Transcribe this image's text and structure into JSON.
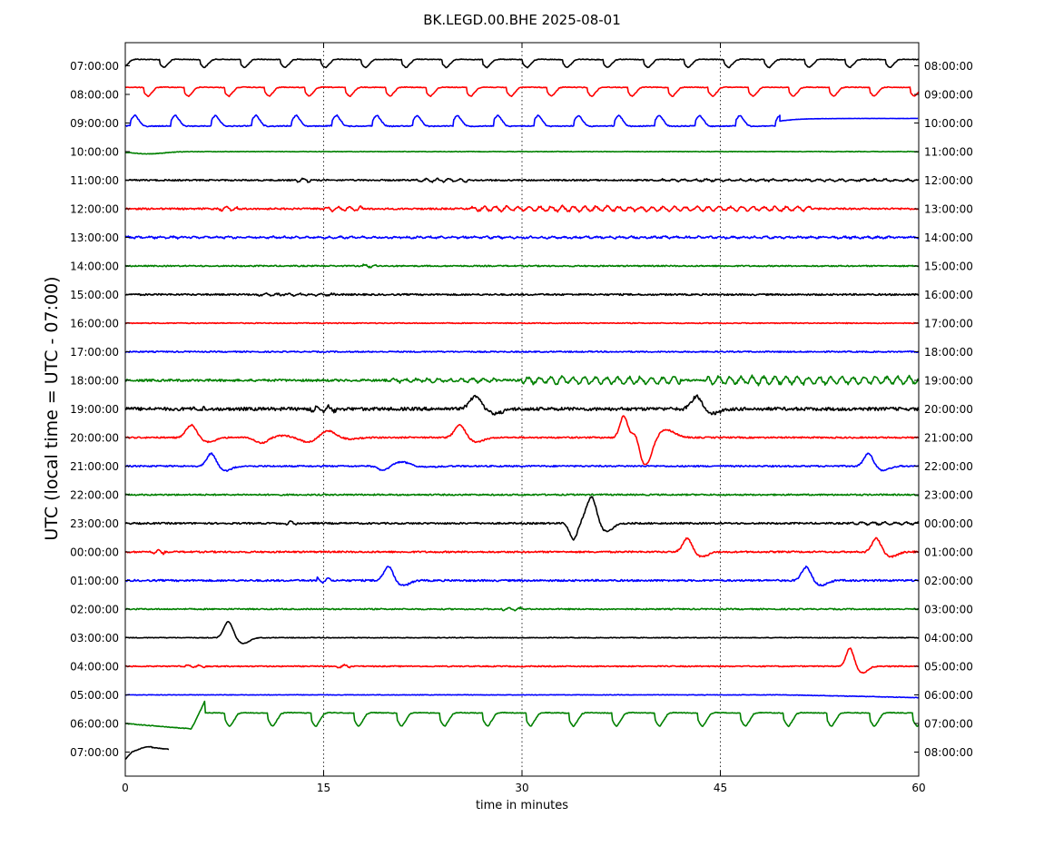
{
  "chart_data": {
    "type": "line",
    "title": "BK.LEGD.00.BHE 2025-08-01",
    "xlabel": "time in minutes",
    "ylabel": "UTC (local time = UTC - 07:00)",
    "xlim": [
      0,
      60
    ],
    "x_ticks": [
      "0",
      "15",
      "30",
      "45",
      "60"
    ],
    "x_tick_values": [
      0,
      15,
      30,
      45,
      60
    ],
    "vertical_grid_minutes": [
      15,
      30,
      45
    ],
    "grid": "vertical dotted",
    "line_colors": [
      "#000000",
      "#ff0000",
      "#0000ff",
      "#008000"
    ],
    "left_labels": [
      "07:00:00",
      "08:00:00",
      "09:00:00",
      "10:00:00",
      "11:00:00",
      "12:00:00",
      "13:00:00",
      "14:00:00",
      "15:00:00",
      "16:00:00",
      "17:00:00",
      "18:00:00",
      "19:00:00",
      "20:00:00",
      "21:00:00",
      "22:00:00",
      "23:00:00",
      "00:00:00",
      "01:00:00",
      "02:00:00",
      "03:00:00",
      "04:00:00",
      "05:00:00",
      "06:00:00",
      "07:00:00"
    ],
    "right_labels": [
      "08:00:00",
      "09:00:00",
      "10:00:00",
      "11:00:00",
      "12:00:00",
      "13:00:00",
      "14:00:00",
      "15:00:00",
      "16:00:00",
      "17:00:00",
      "18:00:00",
      "19:00:00",
      "20:00:00",
      "21:00:00",
      "22:00:00",
      "23:00:00",
      "00:00:00",
      "01:00:00",
      "02:00:00",
      "03:00:00",
      "04:00:00",
      "05:00:00",
      "06:00:00",
      "07:00:00",
      "08:00:00"
    ],
    "traces": [
      {
        "kind": "periodic",
        "start": 0,
        "end": 60,
        "period": 3.05,
        "phase": 2.6,
        "amp": 9,
        "noise": 0.4,
        "dir": 1
      },
      {
        "kind": "periodic",
        "start": 0,
        "end": 60,
        "period": 3.05,
        "phase": 1.4,
        "amp": 10,
        "noise": 0.4,
        "dir": 1
      },
      {
        "kind": "periodic",
        "start": 0,
        "end": 49.5,
        "period": 3.05,
        "phase": 0.4,
        "amp": 12,
        "noise": 0.5,
        "dir": -1,
        "after": "flat-rise"
      },
      {
        "kind": "quiet",
        "noise": 0.3,
        "events": [
          {
            "t": 1,
            "a": -5,
            "w": 1.5,
            "type": "dip"
          }
        ]
      },
      {
        "kind": "quiet",
        "noise": 0.8,
        "bursts": [
          [
            13,
            14,
            2
          ],
          [
            22,
            26,
            2
          ],
          [
            40,
            60,
            1
          ]
        ]
      },
      {
        "kind": "quiet",
        "noise": 0.9,
        "bursts": [
          [
            7,
            8.5,
            2
          ],
          [
            15,
            18,
            2.5
          ],
          [
            26,
            32,
            2.5
          ],
          [
            32,
            38,
            3
          ],
          [
            38,
            52,
            2.5
          ]
        ]
      },
      {
        "kind": "quiet",
        "noise": 0.9,
        "bursts": [
          [
            0,
            60,
            0.8
          ]
        ]
      },
      {
        "kind": "quiet",
        "noise": 0.7,
        "bursts": [
          [
            18,
            19,
            1.5
          ]
        ]
      },
      {
        "kind": "quiet",
        "noise": 0.9,
        "bursts": [
          [
            10,
            16,
            1
          ]
        ]
      },
      {
        "kind": "quiet",
        "noise": 0.5,
        "bursts": []
      },
      {
        "kind": "quiet",
        "noise": 0.7,
        "bursts": []
      },
      {
        "kind": "quiet",
        "noise": 1.2,
        "bursts": [
          [
            20,
            28,
            2
          ],
          [
            30,
            42,
            4
          ],
          [
            44,
            60,
            4.5
          ]
        ]
      },
      {
        "kind": "quiet",
        "noise": 1.8,
        "bursts": [
          [
            5,
            6,
            2
          ],
          [
            14,
            16,
            3
          ]
        ],
        "events": [
          {
            "t": 26.5,
            "a": -14,
            "w": 0.9,
            "type": "spike"
          },
          {
            "t": 43.2,
            "a": -14,
            "w": 0.8,
            "type": "spike"
          }
        ]
      },
      {
        "kind": "quiet",
        "noise": 0.8,
        "bursts": [],
        "events": [
          {
            "t": 5,
            "a": -14,
            "w": 0.8,
            "type": "spike"
          },
          {
            "t": 10.3,
            "a": 6,
            "w": 1.0,
            "type": "spike"
          },
          {
            "t": 13.8,
            "a": 5,
            "w": 1.2,
            "type": "spike"
          },
          {
            "t": 15.3,
            "a": -6,
            "w": 1.0,
            "type": "spike"
          },
          {
            "t": 25.3,
            "a": -14,
            "w": 0.8,
            "type": "spike"
          },
          {
            "t": 37.7,
            "a": -24,
            "w": 0.6,
            "type": "spike"
          },
          {
            "t": 38.6,
            "a": -18,
            "w": 0.6,
            "type": "spike"
          },
          {
            "t": 39.3,
            "a": 24,
            "w": 1.0,
            "type": "spike"
          }
        ]
      },
      {
        "kind": "quiet",
        "noise": 0.8,
        "bursts": [],
        "events": [
          {
            "t": 6.5,
            "a": -14,
            "w": 0.7,
            "type": "spike"
          },
          {
            "t": 19.5,
            "a": 5,
            "w": 0.8,
            "type": "spike"
          },
          {
            "t": 21,
            "a": -3,
            "w": 1.2,
            "type": "spike"
          },
          {
            "t": 56.2,
            "a": -14,
            "w": 0.7,
            "type": "spike"
          }
        ]
      },
      {
        "kind": "quiet",
        "noise": 0.8,
        "bursts": []
      },
      {
        "kind": "quiet",
        "noise": 0.9,
        "bursts": [
          [
            12,
            13,
            2
          ],
          [
            55,
            60,
            1.5
          ]
        ],
        "events": [
          {
            "t": 33.9,
            "a": 18,
            "w": 0.6,
            "type": "spike"
          },
          {
            "t": 35.3,
            "a": -26,
            "w": 0.7,
            "type": "spike"
          }
        ]
      },
      {
        "kind": "quiet",
        "noise": 0.9,
        "bursts": [
          [
            2,
            3,
            2
          ]
        ],
        "events": [
          {
            "t": 42.5,
            "a": -15,
            "w": 0.7,
            "type": "spike"
          },
          {
            "t": 56.8,
            "a": -15,
            "w": 0.7,
            "type": "spike"
          }
        ]
      },
      {
        "kind": "quiet",
        "noise": 1.0,
        "bursts": [
          [
            14.5,
            15.5,
            3
          ]
        ],
        "events": [
          {
            "t": 19.9,
            "a": -16,
            "w": 0.7,
            "type": "spike"
          },
          {
            "t": 51.5,
            "a": -15,
            "w": 0.7,
            "type": "spike"
          }
        ]
      },
      {
        "kind": "quiet",
        "noise": 0.7,
        "bursts": [
          [
            28.5,
            30,
            1.5
          ]
        ]
      },
      {
        "kind": "quiet",
        "noise": 0.4,
        "bursts": [],
        "events": [
          {
            "t": 7.8,
            "a": -18,
            "w": 0.7,
            "type": "spike"
          }
        ]
      },
      {
        "kind": "quiet",
        "noise": 0.6,
        "bursts": [
          [
            4.5,
            6,
            1.5
          ],
          [
            16,
            17,
            1.5
          ]
        ],
        "events": [
          {
            "t": 54.8,
            "a": -20,
            "w": 0.6,
            "type": "spike"
          }
        ]
      },
      {
        "kind": "quiet",
        "noise": 0.3,
        "bursts": [],
        "drift": 3
      },
      {
        "kind": "periodic",
        "start": 0,
        "end": 60,
        "period": 3.25,
        "phase": 4.3,
        "amp": 15,
        "noise": 0.4,
        "dir": 1,
        "pre": "slow-drift"
      },
      {
        "kind": "partial",
        "start": 0,
        "end": 3.3,
        "noise": 0.3
      }
    ]
  }
}
